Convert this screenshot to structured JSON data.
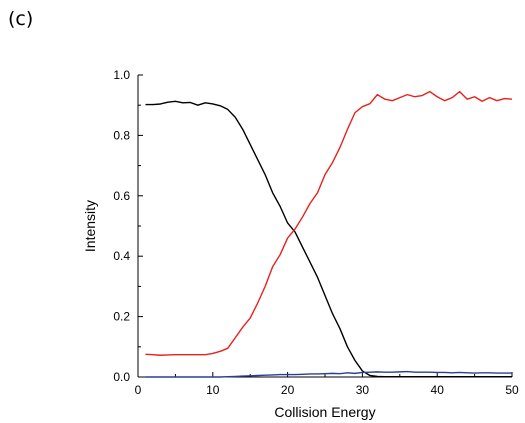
{
  "panel_label": "(c)",
  "chart_data": {
    "type": "line",
    "title": "",
    "xlabel": "Collision Energy",
    "ylabel": "Intensity",
    "xlim": [
      0,
      50
    ],
    "ylim": [
      0,
      1.0
    ],
    "xticks": [
      0,
      10,
      20,
      30,
      40,
      50
    ],
    "yticks": [
      0.0,
      0.2,
      0.4,
      0.6,
      0.8,
      1.0
    ],
    "xtick_labels": [
      "0",
      "10",
      "20",
      "30",
      "40",
      "50"
    ],
    "ytick_labels": [
      "0.0",
      "0.2",
      "0.4",
      "0.6",
      "0.8",
      "1.0"
    ],
    "grid": false,
    "x": [
      1,
      2,
      3,
      4,
      5,
      6,
      7,
      8,
      9,
      10,
      11,
      12,
      13,
      14,
      15,
      16,
      17,
      18,
      19,
      20,
      21,
      22,
      23,
      24,
      25,
      26,
      27,
      28,
      29,
      30,
      31,
      32,
      33,
      34,
      35,
      36,
      37,
      38,
      39,
      40,
      41,
      42,
      43,
      44,
      45,
      46,
      47,
      48,
      49,
      50
    ],
    "series": [
      {
        "color": "#000000",
        "values": [
          0.902,
          0.902,
          0.904,
          0.91,
          0.913,
          0.908,
          0.909,
          0.9,
          0.908,
          0.904,
          0.898,
          0.886,
          0.86,
          0.82,
          0.77,
          0.72,
          0.67,
          0.61,
          0.565,
          0.51,
          0.48,
          0.43,
          0.38,
          0.33,
          0.27,
          0.21,
          0.16,
          0.1,
          0.055,
          0.02,
          0.005,
          0.002,
          0.001,
          0.001,
          0.001,
          0.001,
          0.001,
          0.001,
          0.001,
          0.001,
          0.001,
          0.001,
          0.001,
          0.001,
          0.001,
          0.001,
          0.001,
          0.001,
          0.001,
          0.001
        ]
      },
      {
        "color": "#e8211c",
        "values": [
          0.075,
          0.074,
          0.072,
          0.073,
          0.074,
          0.074,
          0.074,
          0.074,
          0.074,
          0.078,
          0.085,
          0.095,
          0.13,
          0.165,
          0.195,
          0.245,
          0.3,
          0.365,
          0.405,
          0.46,
          0.49,
          0.53,
          0.575,
          0.61,
          0.67,
          0.71,
          0.76,
          0.82,
          0.875,
          0.895,
          0.905,
          0.935,
          0.92,
          0.915,
          0.925,
          0.935,
          0.928,
          0.932,
          0.945,
          0.928,
          0.915,
          0.925,
          0.945,
          0.92,
          0.928,
          0.913,
          0.925,
          0.915,
          0.922,
          0.92
        ]
      },
      {
        "color": "#2a3f9a",
        "values": [
          0.0,
          0.0,
          0.0,
          0.0,
          0.0,
          0.0,
          0.0,
          0.0,
          0.0,
          0.0,
          0.0,
          0.001,
          0.002,
          0.003,
          0.004,
          0.005,
          0.006,
          0.007,
          0.008,
          0.008,
          0.008,
          0.009,
          0.01,
          0.01,
          0.011,
          0.012,
          0.011,
          0.014,
          0.012,
          0.015,
          0.016,
          0.017,
          0.016,
          0.016,
          0.017,
          0.018,
          0.016,
          0.016,
          0.016,
          0.015,
          0.015,
          0.014,
          0.015,
          0.014,
          0.013,
          0.014,
          0.014,
          0.013,
          0.013,
          0.013
        ]
      }
    ]
  }
}
